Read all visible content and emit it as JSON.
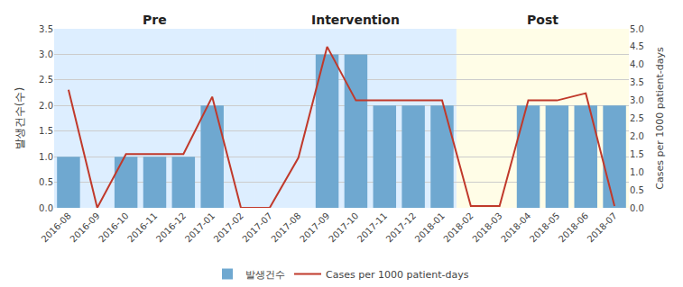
{
  "chart_data": {
    "type": "bar",
    "categories": [
      "2016-08",
      "2016-09",
      "2016-10",
      "2016-11",
      "2016-12",
      "2017-01",
      "2017-02",
      "2017-07",
      "2017-08",
      "2017-09",
      "2017-10",
      "2017-11",
      "2017-12",
      "2018-01",
      "2018-02",
      "2018-03",
      "2018-04",
      "2018-05",
      "2018-06",
      "2018-07"
    ],
    "series": [
      {
        "name": "발생건수",
        "type": "bar",
        "color": "#6fa8d0",
        "values": [
          1,
          0,
          1,
          1,
          1,
          2,
          0,
          0,
          0,
          3,
          3,
          2,
          2,
          2,
          0,
          0,
          2,
          2,
          2,
          2
        ]
      },
      {
        "name": "Cases per 1000 patient-days",
        "type": "line",
        "axis": "y2",
        "color": "#c0392b",
        "values": [
          3.3,
          0.0,
          1.5,
          1.5,
          1.5,
          3.1,
          0.0,
          0.0,
          1.4,
          4.5,
          3.0,
          3.0,
          3.0,
          3.0,
          0.05,
          0.05,
          3.0,
          3.0,
          3.2,
          0.05
        ]
      }
    ],
    "ylabel": "발생건수(수)",
    "y2label": "Cases per 1000 patient-days",
    "ylim": [
      0,
      3.5
    ],
    "yticks": [
      {
        "value": 0,
        "label": "0.0"
      },
      0.5,
      {
        "value": 1.0,
        "label": "1.0"
      },
      1.5,
      {
        "value": 2.0,
        "label": "2.0"
      },
      2.5,
      {
        "value": 3.0,
        "label": "3.0"
      },
      3.5
    ],
    "y2lim": [
      0,
      5
    ],
    "y2ticks": [
      {
        "value": 0,
        "label": "0.0"
      },
      0.5,
      {
        "value": 1.0,
        "label": "1.0"
      },
      1.5,
      {
        "value": 2.0,
        "label": "2.0"
      },
      2.5,
      {
        "value": 3.0,
        "label": "3.0"
      },
      3.5,
      {
        "value": 4.0,
        "label": "4.0"
      },
      4.5,
      {
        "value": 5.0,
        "label": "5.0"
      }
    ],
    "sections": [
      {
        "label": "Pre",
        "start": "2016-08",
        "end": "2017-02",
        "color": "#ddeeff"
      },
      {
        "label": "Intervention",
        "start": "2017-07",
        "end": "2018-01",
        "color": "#ddeeff"
      },
      {
        "label": "Post",
        "start": "2018-02",
        "end": "2018-07",
        "color": "#fffde7"
      }
    ],
    "grid": true,
    "legend": "bottom"
  }
}
